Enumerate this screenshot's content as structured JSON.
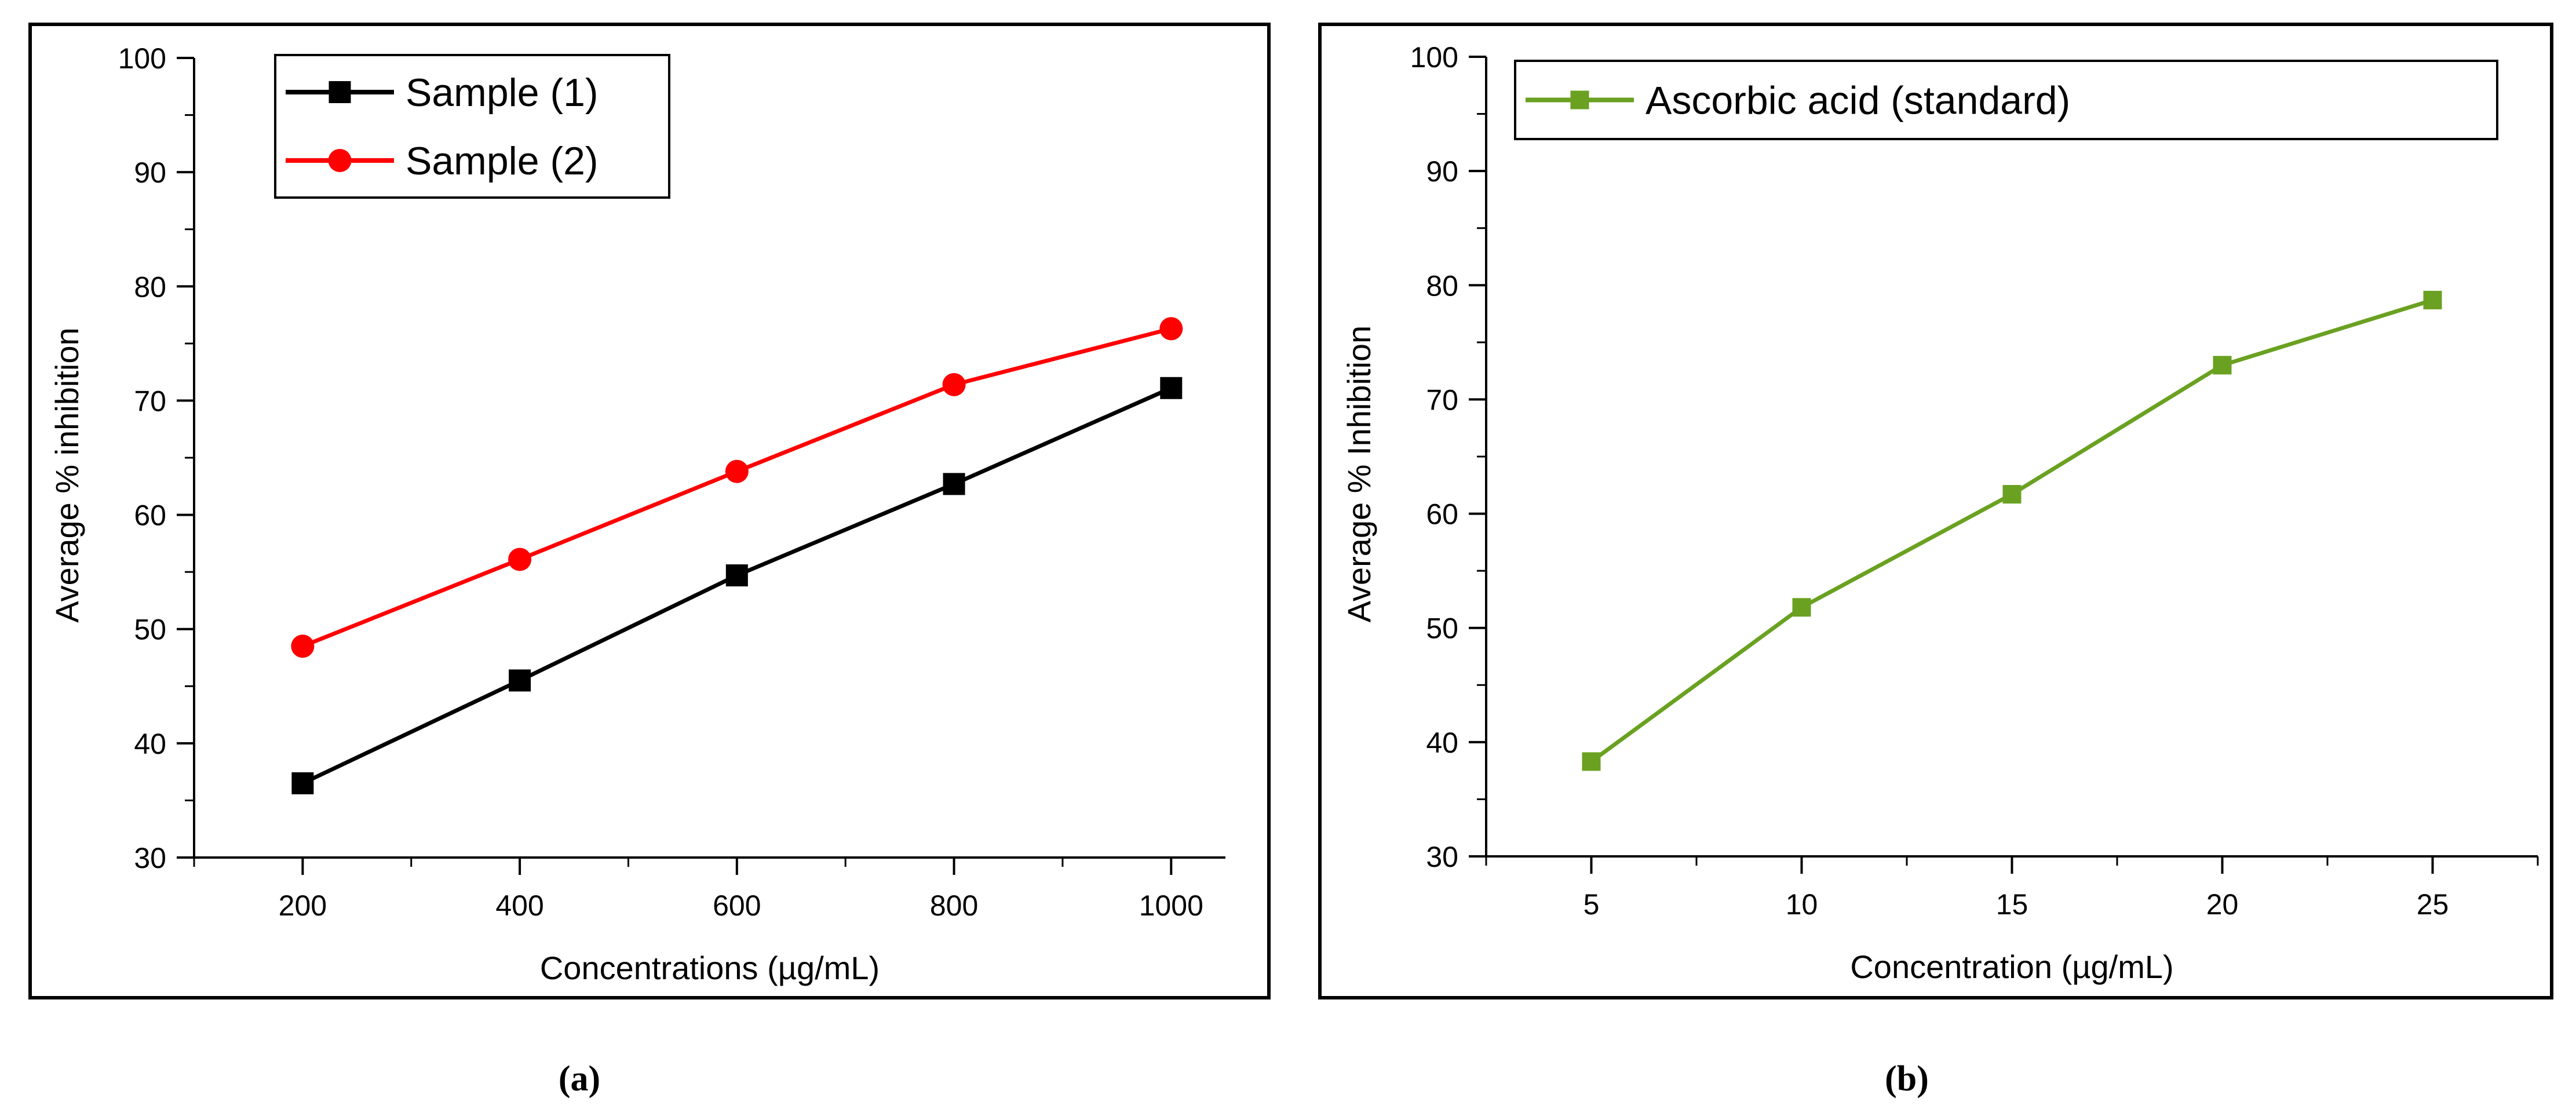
{
  "figure": {
    "captions": [
      "(a)",
      "(b)"
    ]
  },
  "chart_data": [
    {
      "type": "line",
      "panel_label": "(a)",
      "title": "",
      "xlabel": "Concentrations (µg/mL)",
      "ylabel": "Average % inhibition",
      "xlim": [
        100,
        1050
      ],
      "ylim": [
        30,
        100
      ],
      "xticks": [
        200,
        400,
        600,
        800,
        1000
      ],
      "yticks": [
        30,
        40,
        50,
        60,
        70,
        80,
        90,
        100
      ],
      "legend_position": "top-left",
      "grid": false,
      "x": [
        200,
        400,
        600,
        800,
        1000
      ],
      "series": [
        {
          "name": "Sample (1)",
          "color": "#000000",
          "marker": "square",
          "values": [
            36.5,
            45.5,
            54.7,
            62.7,
            71.1
          ]
        },
        {
          "name": "Sample (2)",
          "color": "#ff0000",
          "marker": "circle",
          "values": [
            48.5,
            56.1,
            63.8,
            71.4,
            76.3
          ]
        }
      ]
    },
    {
      "type": "line",
      "panel_label": "(b)",
      "title": "",
      "xlabel": "Concentration (µg/mL)",
      "ylabel": "Average % Inhibition",
      "xlim": [
        2.5,
        27.5
      ],
      "ylim": [
        30,
        100
      ],
      "xticks": [
        5,
        10,
        15,
        20,
        25
      ],
      "yticks": [
        30,
        40,
        50,
        60,
        70,
        80,
        90,
        100
      ],
      "legend_position": "top-left",
      "grid": false,
      "x": [
        5,
        10,
        15,
        20,
        25
      ],
      "series": [
        {
          "name": "Ascorbic acid (standard)",
          "color": "#6aa121",
          "marker": "square",
          "values": [
            38.3,
            51.8,
            61.7,
            73.0,
            78.7
          ]
        }
      ]
    }
  ]
}
